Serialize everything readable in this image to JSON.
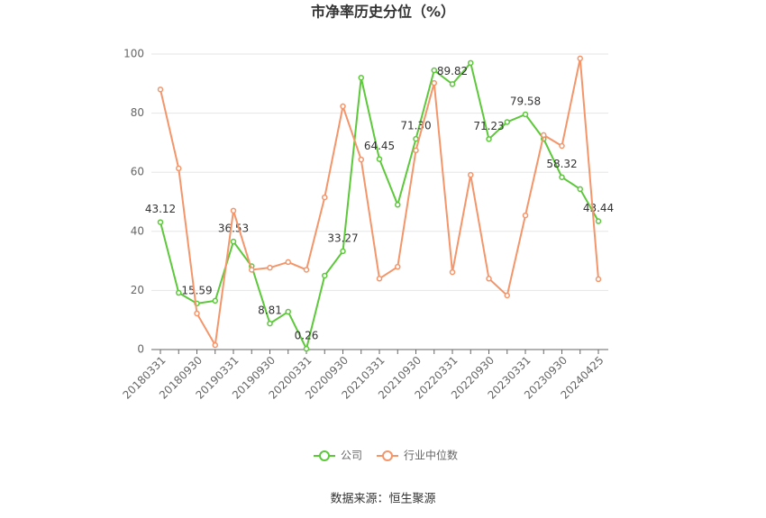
{
  "chart_data": {
    "type": "line",
    "title": "市净率历史分位（%）",
    "categories": [
      "20180331",
      null,
      "20180930",
      null,
      "20190331",
      null,
      "20190930",
      null,
      "20200331",
      null,
      "20200930",
      null,
      "20210331",
      null,
      "20210930",
      null,
      "20220331",
      null,
      "20220930",
      null,
      "20230331",
      null,
      "20230930",
      null,
      "20240425"
    ],
    "series": [
      {
        "name": "公司",
        "color": "#5cc83a",
        "values": [
          43.12,
          19.2,
          15.59,
          16.5,
          36.53,
          28.2,
          8.81,
          12.8,
          0.26,
          25,
          33.27,
          92,
          64.45,
          49,
          71.3,
          94.5,
          89.82,
          97,
          71.23,
          77,
          79.58,
          71.3,
          58.32,
          54.3,
          43.44
        ],
        "value_labels": [
          "43.12",
          null,
          "15.59",
          null,
          "36.53",
          null,
          "8.81",
          null,
          "0.26",
          null,
          "33.27",
          null,
          "64.45",
          null,
          "71.30",
          null,
          "89.82",
          null,
          "71.23",
          null,
          "79.58",
          null,
          "58.32",
          null,
          "43.44"
        ]
      },
      {
        "name": "行业中位数",
        "color": "#f4956a",
        "values": [
          88,
          61.3,
          12.2,
          1.5,
          47,
          27,
          27.7,
          29.6,
          27,
          51.5,
          82.3,
          64.3,
          24,
          28,
          67.4,
          90.2,
          26.2,
          59.1,
          24,
          18.3,
          45.4,
          72.6,
          68.9,
          98.5,
          23.8
        ]
      }
    ],
    "ylim": [
      0,
      100
    ],
    "yticks": [
      0,
      20,
      40,
      60,
      80,
      100
    ],
    "grid": true,
    "source": "数据来源：恒生聚源"
  }
}
